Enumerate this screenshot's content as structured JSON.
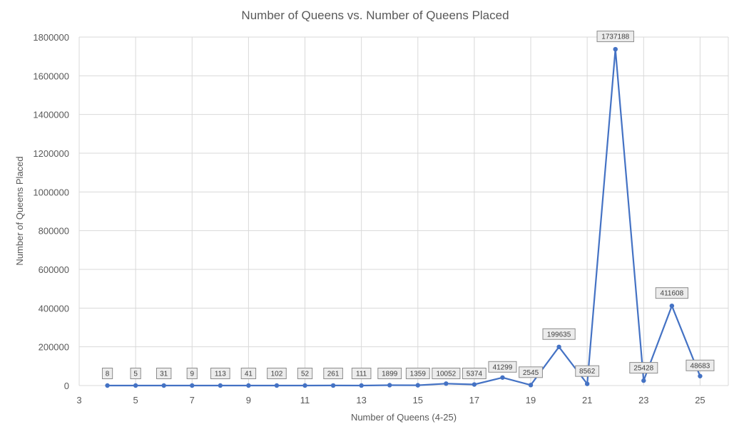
{
  "chart_data": {
    "type": "line",
    "title": "Number of Queens vs. Number of Queens Placed",
    "xlabel": "Number of Queens (4-25)",
    "ylabel": "Number of Queens Placed",
    "xlim": [
      3,
      26
    ],
    "ylim": [
      0,
      1800000
    ],
    "x_ticks": [
      3,
      5,
      7,
      9,
      11,
      13,
      15,
      17,
      19,
      21,
      23,
      25
    ],
    "y_ticks": [
      0,
      200000,
      400000,
      600000,
      800000,
      1000000,
      1200000,
      1400000,
      1600000,
      1800000
    ],
    "grid": true,
    "line_color": "#4472c4",
    "x": [
      4,
      5,
      6,
      7,
      8,
      9,
      10,
      11,
      12,
      13,
      14,
      15,
      16,
      17,
      18,
      19,
      20,
      21,
      22,
      23,
      24,
      25
    ],
    "series": [
      {
        "values": [
          8,
          5,
          31,
          9,
          113,
          41,
          102,
          52,
          261,
          111,
          1899,
          1359,
          10052,
          5374,
          41299,
          2545,
          199635,
          8562,
          1737188,
          25428,
          411608,
          48683
        ]
      }
    ]
  }
}
